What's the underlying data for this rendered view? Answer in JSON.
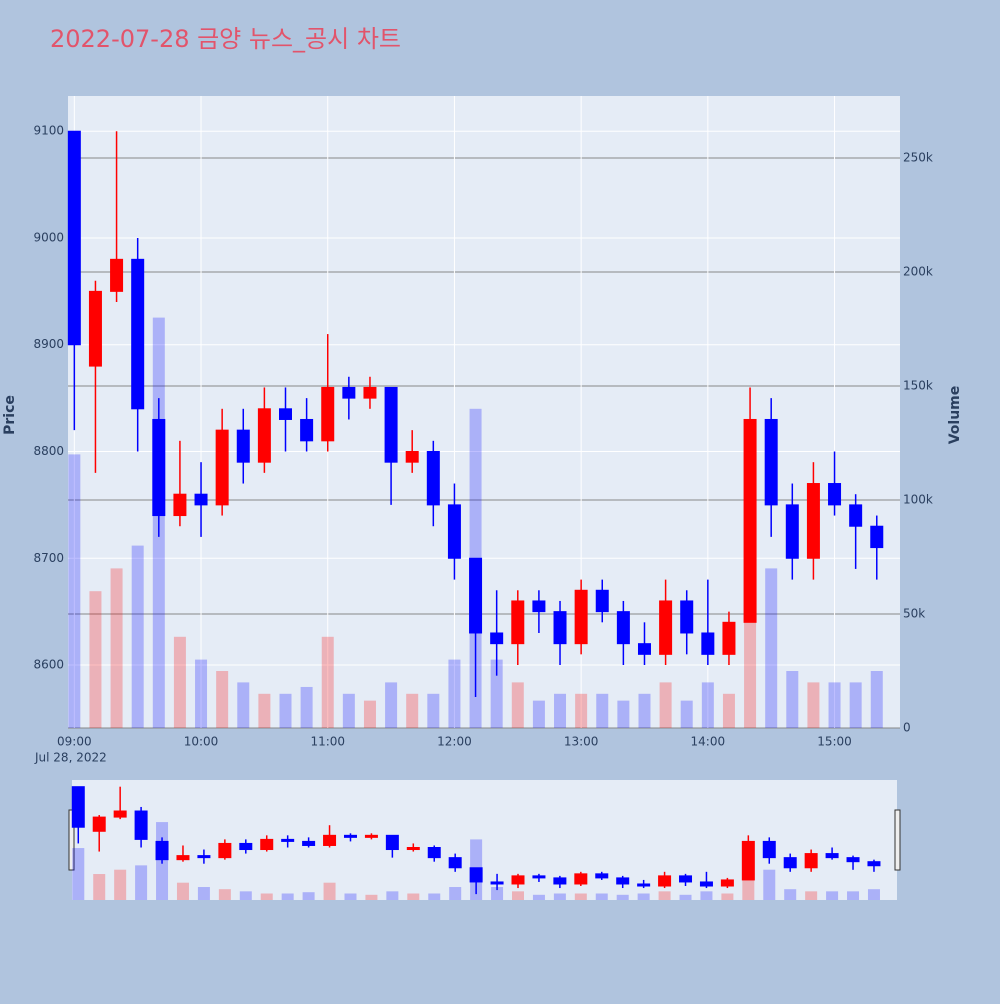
{
  "chart_data": {
    "type": "candlestick",
    "title": "2022-07-28 금양 뉴스_공시 차트",
    "ylabel": "Price",
    "y2label": "Volume",
    "x_date_label": "Jul 28, 2022",
    "up_color": "#ff0000",
    "down_color": "#0000ff",
    "x": [
      "09:00",
      "09:10",
      "09:20",
      "09:30",
      "09:40",
      "09:50",
      "10:00",
      "10:10",
      "10:20",
      "10:30",
      "10:40",
      "10:50",
      "11:00",
      "11:10",
      "11:20",
      "11:30",
      "11:40",
      "11:50",
      "12:00",
      "12:10",
      "12:20",
      "12:30",
      "12:40",
      "12:50",
      "13:00",
      "13:10",
      "13:20",
      "13:30",
      "13:40",
      "13:50",
      "14:00",
      "14:10",
      "14:20",
      "14:30",
      "14:40",
      "14:50",
      "15:00",
      "15:10",
      "15:20"
    ],
    "open": [
      9100,
      8880,
      8950,
      8980,
      8830,
      8740,
      8760,
      8750,
      8820,
      8790,
      8840,
      8830,
      8810,
      8860,
      8850,
      8860,
      8790,
      8800,
      8750,
      8700,
      8630,
      8620,
      8660,
      8650,
      8620,
      8670,
      8650,
      8620,
      8610,
      8660,
      8630,
      8610,
      8640,
      8830,
      8750,
      8700,
      8770,
      8750,
      8730
    ],
    "high": [
      9100,
      8960,
      9100,
      9000,
      8850,
      8810,
      8790,
      8840,
      8840,
      8860,
      8860,
      8850,
      8910,
      8870,
      8870,
      8860,
      8820,
      8810,
      8770,
      8700,
      8670,
      8670,
      8670,
      8660,
      8680,
      8680,
      8660,
      8640,
      8680,
      8670,
      8680,
      8650,
      8860,
      8850,
      8770,
      8790,
      8800,
      8760,
      8740
    ],
    "low": [
      8820,
      8780,
      8940,
      8800,
      8720,
      8730,
      8720,
      8740,
      8770,
      8780,
      8800,
      8800,
      8800,
      8830,
      8840,
      8750,
      8780,
      8730,
      8680,
      8570,
      8590,
      8600,
      8630,
      8600,
      8610,
      8640,
      8600,
      8600,
      8600,
      8610,
      8600,
      8600,
      8640,
      8720,
      8680,
      8680,
      8740,
      8690,
      8680
    ],
    "close": [
      8900,
      8950,
      8980,
      8840,
      8740,
      8760,
      8750,
      8820,
      8790,
      8840,
      8830,
      8810,
      8860,
      8850,
      8860,
      8790,
      8800,
      8750,
      8700,
      8630,
      8620,
      8660,
      8650,
      8620,
      8670,
      8650,
      8620,
      8610,
      8660,
      8630,
      8610,
      8640,
      8830,
      8750,
      8700,
      8770,
      8750,
      8730,
      8710
    ],
    "volume": [
      120000,
      60000,
      70000,
      80000,
      180000,
      40000,
      30000,
      25000,
      20000,
      15000,
      15000,
      18000,
      40000,
      15000,
      12000,
      20000,
      15000,
      15000,
      30000,
      140000,
      30000,
      20000,
      12000,
      15000,
      15000,
      15000,
      12000,
      15000,
      20000,
      12000,
      20000,
      15000,
      80000,
      70000,
      25000,
      20000,
      20000,
      20000,
      25000
    ],
    "xlim": [
      "08:57",
      "15:31"
    ],
    "xticks": [
      "09:00",
      "10:00",
      "11:00",
      "12:00",
      "13:00",
      "14:00",
      "15:00"
    ],
    "ylim": [
      8541,
      9133
    ],
    "yticks": [
      8600,
      8700,
      8800,
      8900,
      9000,
      9100
    ],
    "y2lim": [
      0,
      277200
    ],
    "y2ticks": [
      0,
      {
        "value": 50000,
        "label": "50k"
      },
      {
        "value": 100000,
        "label": "100k"
      },
      {
        "value": 150000,
        "label": "150k"
      },
      {
        "value": 200000,
        "label": "200k"
      },
      {
        "value": 250000,
        "label": "250k"
      }
    ]
  }
}
